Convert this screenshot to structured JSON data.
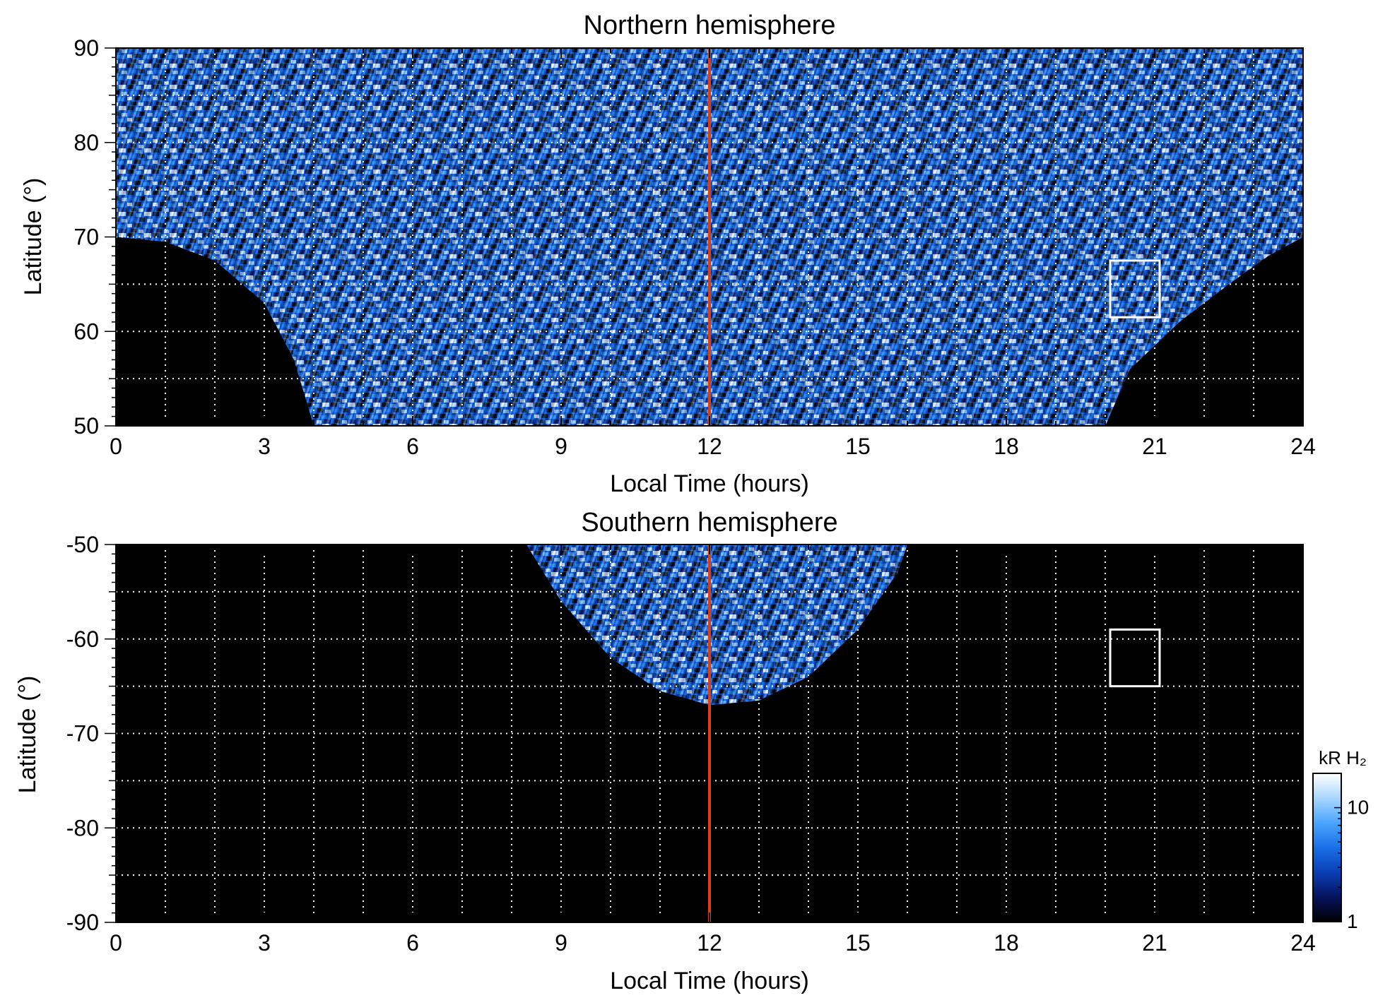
{
  "chart_data": [
    {
      "type": "heatmap",
      "title": "Northern hemisphere",
      "xlabel": "Local Time (hours)",
      "ylabel": "Latitude (°)",
      "xlim": [
        0,
        24
      ],
      "ylim": [
        50,
        90
      ],
      "x_ticks": [
        0,
        3,
        6,
        9,
        12,
        15,
        18,
        21,
        24
      ],
      "x_tick_labels": [
        "0",
        "3",
        "6",
        "9",
        "12",
        "15",
        "18",
        "21",
        "24"
      ],
      "y_ticks": [
        50,
        60,
        70,
        80,
        90
      ],
      "y_tick_labels": [
        "50",
        "60",
        "70",
        "80",
        "90"
      ],
      "grid": true,
      "grid_x": [
        1,
        2,
        3,
        4,
        5,
        6,
        7,
        8,
        9,
        10,
        11,
        13,
        14,
        15,
        16,
        17,
        18,
        19,
        20,
        21,
        22,
        23
      ],
      "grid_y": [
        55,
        60,
        65,
        70,
        75,
        80,
        85
      ],
      "coverage_boundary": [
        [
          0,
          70
        ],
        [
          1,
          69.5
        ],
        [
          2,
          67.5
        ],
        [
          3,
          63
        ],
        [
          3.6,
          57
        ],
        [
          4,
          50
        ],
        [
          20,
          50
        ],
        [
          20.5,
          56
        ],
        [
          21.5,
          61
        ],
        [
          22.5,
          65
        ],
        [
          23.3,
          68
        ],
        [
          24,
          70
        ]
      ],
      "reference_line_x": 12,
      "reference_line_color": "#d9401a",
      "highlight_box": {
        "x": [
          20.1,
          21.1
        ],
        "y": [
          61.5,
          67.5
        ],
        "color": "#ffffff"
      },
      "colormap": [
        "#000000",
        "#06145e",
        "#0a3fb5",
        "#1a70e8",
        "#4aa6ff",
        "#a9d6ff",
        "#ffffff"
      ]
    },
    {
      "type": "heatmap",
      "title": "Southern hemisphere",
      "xlabel": "Local Time (hours)",
      "ylabel": "Latitude (°)",
      "xlim": [
        0,
        24
      ],
      "ylim": [
        -90,
        -50
      ],
      "x_ticks": [
        0,
        3,
        6,
        9,
        12,
        15,
        18,
        21,
        24
      ],
      "x_tick_labels": [
        "0",
        "3",
        "6",
        "9",
        "12",
        "15",
        "18",
        "21",
        "24"
      ],
      "y_ticks": [
        -90,
        -80,
        -70,
        -60,
        -50
      ],
      "y_tick_labels": [
        "-90",
        "-80",
        "-70",
        "-60",
        "-50"
      ],
      "grid": true,
      "grid_x": [
        1,
        2,
        3,
        4,
        5,
        6,
        7,
        8,
        9,
        10,
        11,
        13,
        14,
        15,
        16,
        17,
        18,
        19,
        20,
        21,
        22,
        23
      ],
      "grid_y": [
        -85,
        -80,
        -75,
        -70,
        -65,
        -60,
        -55
      ],
      "coverage_boundary": [
        [
          8.3,
          -50
        ],
        [
          9,
          -56
        ],
        [
          10,
          -62
        ],
        [
          11,
          -65.5
        ],
        [
          12,
          -67
        ],
        [
          13,
          -66.5
        ],
        [
          14,
          -64
        ],
        [
          15,
          -59
        ],
        [
          15.8,
          -53
        ],
        [
          16,
          -50
        ]
      ],
      "reference_line_x": 12,
      "reference_line_color": "#d9401a",
      "highlight_box": {
        "x": [
          20.1,
          21.1
        ],
        "y": [
          -65,
          -59
        ],
        "color": "#ffffff"
      },
      "colormap": [
        "#000000",
        "#06145e",
        "#0a3fb5",
        "#1a70e8",
        "#4aa6ff",
        "#a9d6ff",
        "#ffffff"
      ]
    }
  ],
  "colorbar": {
    "label": "kR H₂",
    "ticks": [
      1,
      10
    ],
    "tick_labels": [
      "1",
      "10"
    ],
    "range": [
      1,
      20
    ],
    "scale": "log",
    "colors": [
      "#000000",
      "#06145e",
      "#0a3fb5",
      "#1a70e8",
      "#4aa6ff",
      "#a9d6ff",
      "#ffffff"
    ]
  }
}
